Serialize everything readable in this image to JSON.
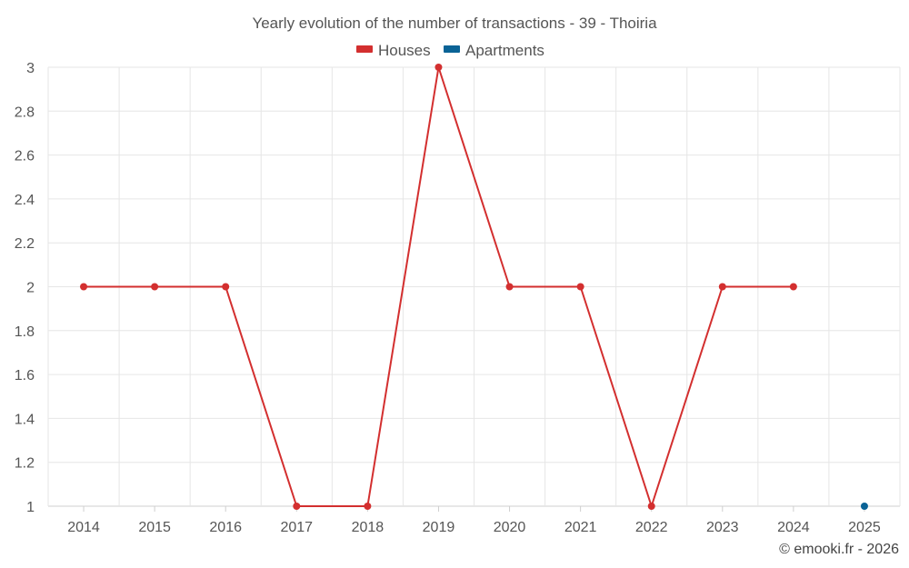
{
  "chart_data": {
    "type": "line",
    "title": "Yearly evolution of the number of transactions - 39 - Thoiria",
    "categories": [
      "2014",
      "2015",
      "2016",
      "2017",
      "2018",
      "2019",
      "2020",
      "2021",
      "2022",
      "2023",
      "2024",
      "2025"
    ],
    "series": [
      {
        "name": "Houses",
        "color": "#d32f2f",
        "values": [
          2,
          2,
          2,
          1,
          1,
          3,
          2,
          2,
          1,
          2,
          2,
          null
        ]
      },
      {
        "name": "Apartments",
        "color": "#0a6396",
        "values": [
          null,
          null,
          null,
          null,
          null,
          null,
          null,
          null,
          null,
          null,
          null,
          1
        ]
      }
    ],
    "ylim": [
      1,
      3
    ],
    "yticks": [
      "1",
      "1.2",
      "1.4",
      "1.6",
      "1.8",
      "2",
      "2.2",
      "2.4",
      "2.6",
      "2.8",
      "3"
    ],
    "xlabel": "",
    "ylabel": "",
    "grid": true,
    "legend_position": "top-center"
  },
  "credit": "© emooki.fr - 2026"
}
